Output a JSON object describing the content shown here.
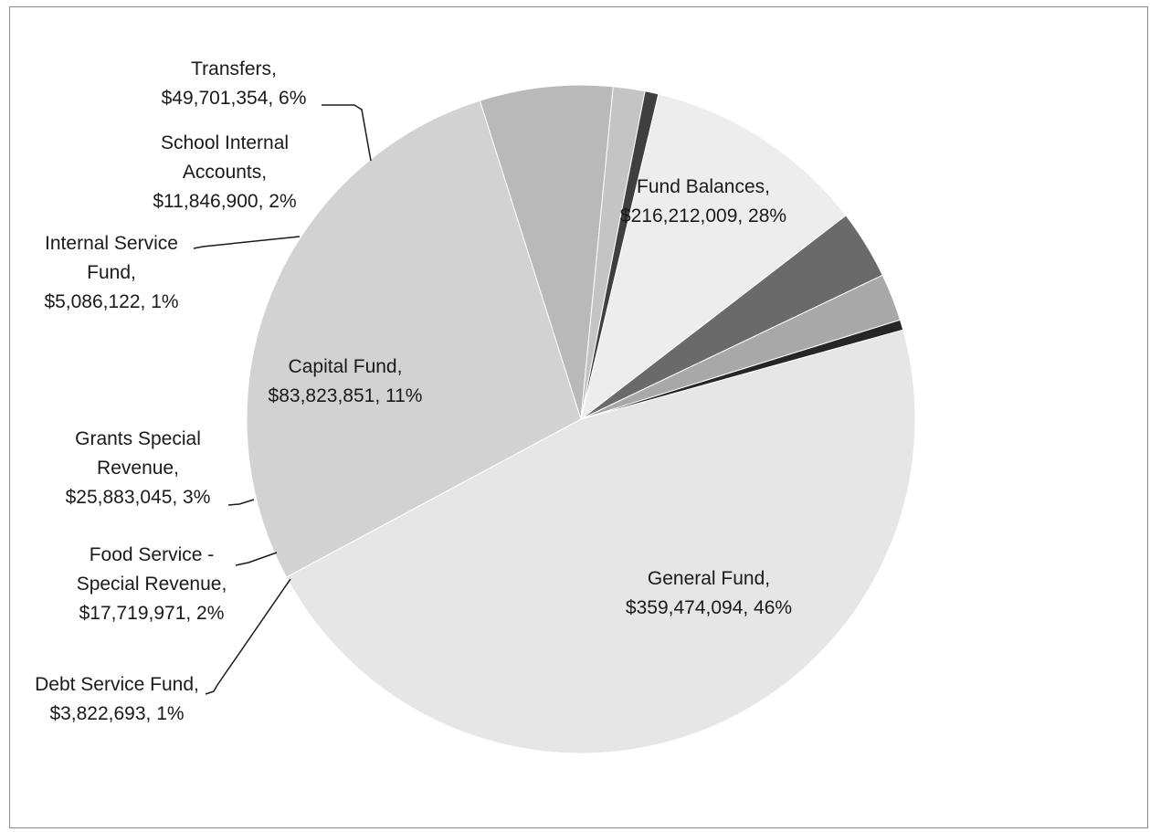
{
  "chart_data": {
    "type": "pie",
    "title": "",
    "slices": [
      {
        "name": "General Fund",
        "value": 359474094,
        "value_text": "$359,474,094",
        "percent_text": "46%",
        "color": "#e6e6e6"
      },
      {
        "name": "Fund Balances",
        "value": 216212009,
        "value_text": "$216,212,009",
        "percent_text": "28%",
        "color": "#d2d2d2"
      },
      {
        "name": "Transfers",
        "value": 49701354,
        "value_text": "$49,701,354",
        "percent_text": "6%",
        "color": "#b9b9b9"
      },
      {
        "name": "School Internal Accounts",
        "value": 11846900,
        "value_text": "$11,846,900",
        "percent_text": "2%",
        "color": "#c4c4c4"
      },
      {
        "name": "Internal Service Fund",
        "value": 5086122,
        "value_text": "$5,086,122",
        "percent_text": "1%",
        "color": "#3f3f3f"
      },
      {
        "name": "Capital Fund",
        "value": 83823851,
        "value_text": "$83,823,851",
        "percent_text": "11%",
        "color": "#ededed"
      },
      {
        "name": "Grants Special Revenue",
        "value": 25883045,
        "value_text": "$25,883,045",
        "percent_text": "3%",
        "color": "#6a6a6a"
      },
      {
        "name": "Food Service - Special Revenue",
        "value": 17719971,
        "value_text": "$17,719,971",
        "percent_text": "2%",
        "color": "#a8a8a8"
      },
      {
        "name": "Debt Service Fund",
        "value": 3822693,
        "value_text": "$3,822,693",
        "percent_text": "1%",
        "color": "#262626"
      }
    ],
    "labels": [
      {
        "lines": [
          "General Fund,",
          "$359,474,094, 46%"
        ]
      },
      {
        "lines": [
          "Fund Balances,",
          "$216,212,009, 28%"
        ]
      },
      {
        "lines": [
          "Transfers,",
          "$49,701,354, 6%"
        ]
      },
      {
        "lines": [
          "School Internal",
          "Accounts,",
          "$11,846,900, 2%"
        ]
      },
      {
        "lines": [
          "Internal Service",
          "Fund,",
          "$5,086,122, 1%"
        ]
      },
      {
        "lines": [
          "Capital Fund,",
          "$83,823,851, 11%"
        ]
      },
      {
        "lines": [
          "Grants Special",
          "Revenue,",
          "$25,883,045, 3%"
        ]
      },
      {
        "lines": [
          "Food Service -",
          "Special Revenue,",
          "$17,719,971, 2%"
        ]
      },
      {
        "lines": [
          "Debt Service Fund,",
          "$3,822,693, 1%"
        ]
      }
    ],
    "legend": "none",
    "label_style": "category, value, percentage"
  }
}
